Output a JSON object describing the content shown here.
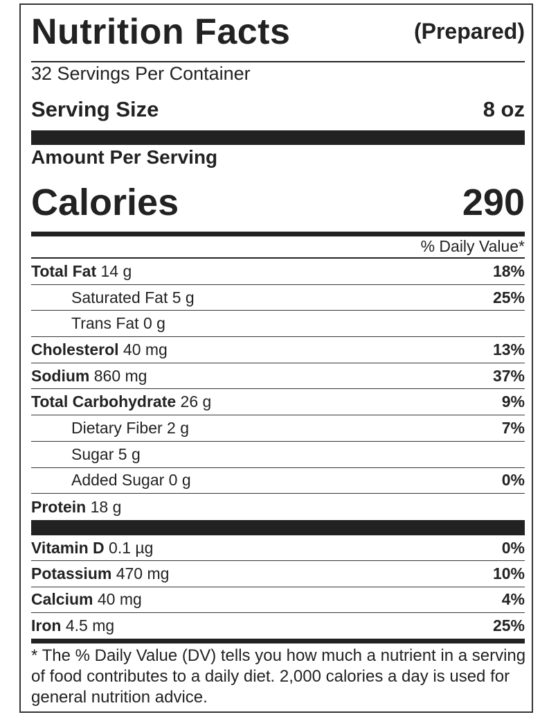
{
  "header": {
    "title": "Nutrition Facts",
    "subtitle": "(Prepared)"
  },
  "servings": "32 Servings Per Container",
  "serving_size": {
    "label": "Serving Size",
    "value": "8 oz"
  },
  "amount_per_serving": "Amount Per Serving",
  "calories": {
    "label": "Calories",
    "value": "290"
  },
  "daily_value_header": "% Daily Value*",
  "nutrients": [
    {
      "name": "Total Fat",
      "amount": "14 g",
      "dv": "18%",
      "indent": false
    },
    {
      "name": "Saturated Fat",
      "amount": "5 g",
      "dv": "25%",
      "indent": true
    },
    {
      "name": "Trans Fat",
      "amount": "0 g",
      "indent": true
    },
    {
      "name": "Cholesterol",
      "amount": "40 mg",
      "dv": "13%",
      "indent": false
    },
    {
      "name": "Sodium",
      "amount": "860 mg",
      "dv": "37%",
      "indent": false
    },
    {
      "name": "Total Carbohydrate",
      "amount": "26 g",
      "dv": "9%",
      "indent": false
    },
    {
      "name": "Dietary Fiber",
      "amount": "2 g",
      "dv": "7%",
      "indent": true
    },
    {
      "name": "Sugar",
      "amount": "5 g",
      "indent": true
    },
    {
      "name": "Added Sugar",
      "amount": "0 g",
      "dv": "0%",
      "indent": true
    },
    {
      "name": "Protein",
      "amount": "18 g",
      "indent": false
    }
  ],
  "vitamins": [
    {
      "name": "Vitamin D",
      "amount": "0.1 µg",
      "dv": "0%"
    },
    {
      "name": "Potassium",
      "amount": "470 mg",
      "dv": "10%"
    },
    {
      "name": "Calcium",
      "amount": "40 mg",
      "dv": "4%"
    },
    {
      "name": "Iron",
      "amount": "4.5 mg",
      "dv": "25%"
    }
  ],
  "footnote": "* The % Daily Value (DV) tells you how much a nutrient in a serving of food contributes to a daily diet. 2,000 calories a day is used for general nutrition advice."
}
